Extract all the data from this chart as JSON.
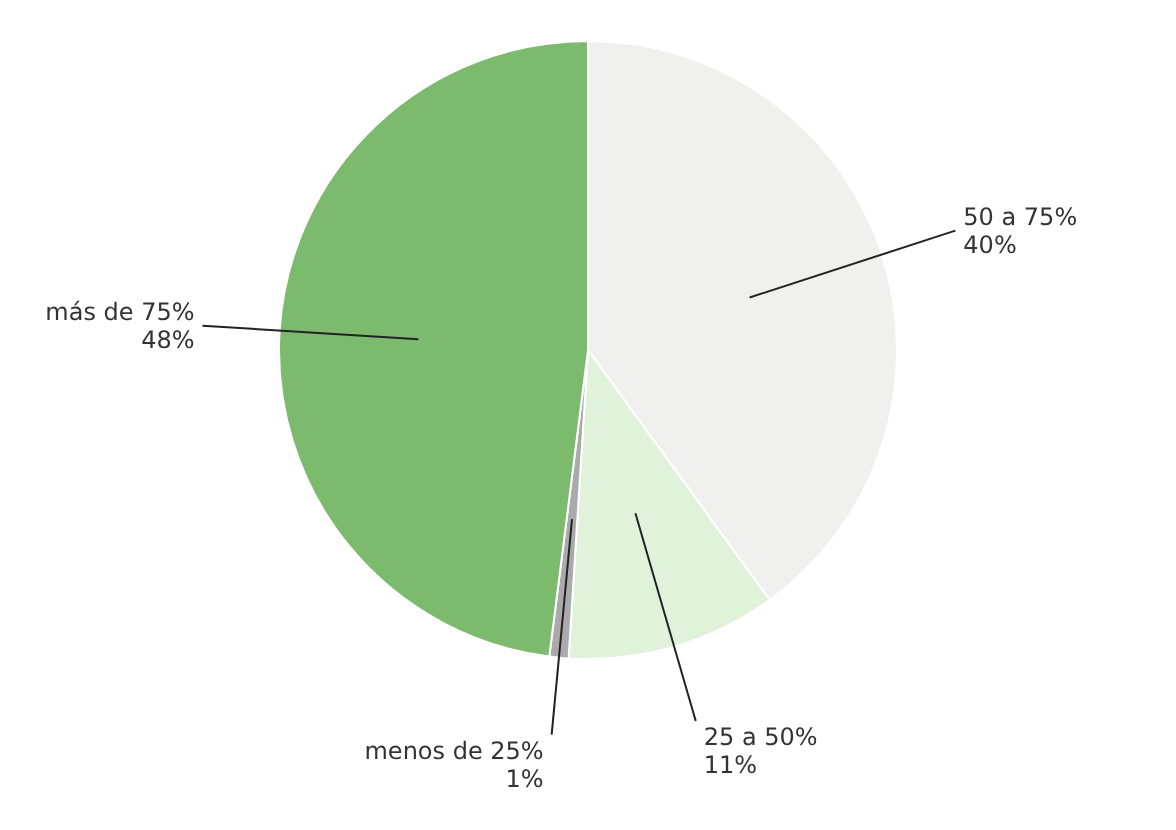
{
  "chart_data": {
    "type": "pie",
    "categories": [
      "50 a 75%",
      "25 a 50%",
      "menos de 25%",
      "más de 75%"
    ],
    "values": [
      40,
      11,
      1,
      48
    ],
    "value_labels": [
      "40%",
      "11%",
      "1%",
      "48%"
    ],
    "colors": [
      "#f0f0ee",
      "#e0f3da",
      "#a9aaa9",
      "#7cbb6e"
    ],
    "legend": false
  }
}
